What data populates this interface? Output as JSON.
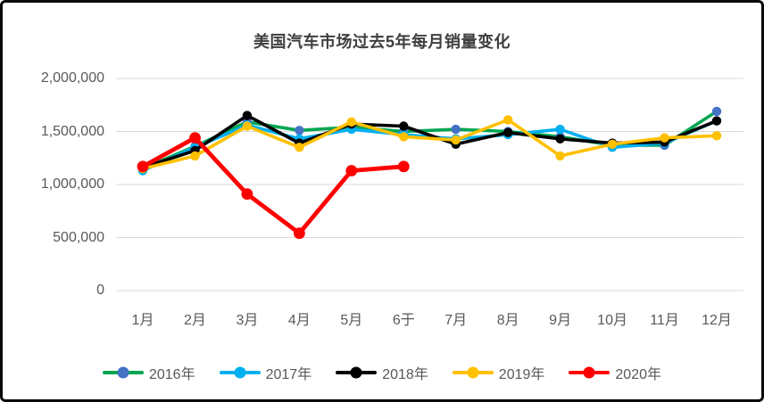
{
  "frame": {
    "background": "#FFFFFF",
    "border_color": "#0A0A0A"
  },
  "chart_data": {
    "type": "line",
    "title": "美国汽车市场过去5年每月销量变化",
    "title_color": "#3F3F3F",
    "xlabel": "",
    "ylabel": "",
    "categories": [
      "1月",
      "2月",
      "3月",
      "4月",
      "5月",
      "6于",
      "7月",
      "8月",
      "9月",
      "10月",
      "11月",
      "12月"
    ],
    "y_ticks": [
      "2,000,000",
      "1,500,000",
      "1,000,000",
      "500,000",
      "0"
    ],
    "y_tick_values": [
      2000000,
      1500000,
      1000000,
      500000,
      0
    ],
    "ylim": [
      0,
      2000000
    ],
    "grid": "horizontal-only",
    "gridline_color": "#D9D9D9",
    "axis_text_color": "#595959",
    "legend_position": "bottom",
    "series": [
      {
        "name": "2016年",
        "line_color": "#00A551",
        "marker_color": "#4472C4",
        "line_width": 3.6,
        "values": [
          1150000,
          1360000,
          1590000,
          1510000,
          1540000,
          1500000,
          1520000,
          1500000,
          1450000,
          1370000,
          1370000,
          1690000
        ]
      },
      {
        "name": "2017年",
        "line_color": "#00B0F0",
        "marker_color": "#00B0F0",
        "line_width": 3.6,
        "values": [
          1130000,
          1350000,
          1560000,
          1430000,
          1520000,
          1470000,
          1430000,
          1470000,
          1520000,
          1350000,
          1390000,
          1600000
        ]
      },
      {
        "name": "2018年",
        "line_color": "#000000",
        "marker_color": "#000000",
        "line_width": 3.6,
        "values": [
          1160000,
          1320000,
          1650000,
          1390000,
          1570000,
          1550000,
          1380000,
          1490000,
          1430000,
          1390000,
          1400000,
          1600000
        ]
      },
      {
        "name": "2019年",
        "line_color": "#FFC000",
        "marker_color": "#FFC000",
        "line_width": 3.6,
        "values": [
          1150000,
          1270000,
          1550000,
          1350000,
          1590000,
          1450000,
          1420000,
          1610000,
          1270000,
          1380000,
          1440000,
          1460000
        ]
      },
      {
        "name": "2020年",
        "line_color": "#FF0000",
        "marker_color": "#FF0000",
        "line_width": 4.8,
        "values": [
          1170000,
          1440000,
          910000,
          540000,
          1130000,
          1170000,
          null,
          null,
          null,
          null,
          null,
          null
        ]
      }
    ]
  }
}
